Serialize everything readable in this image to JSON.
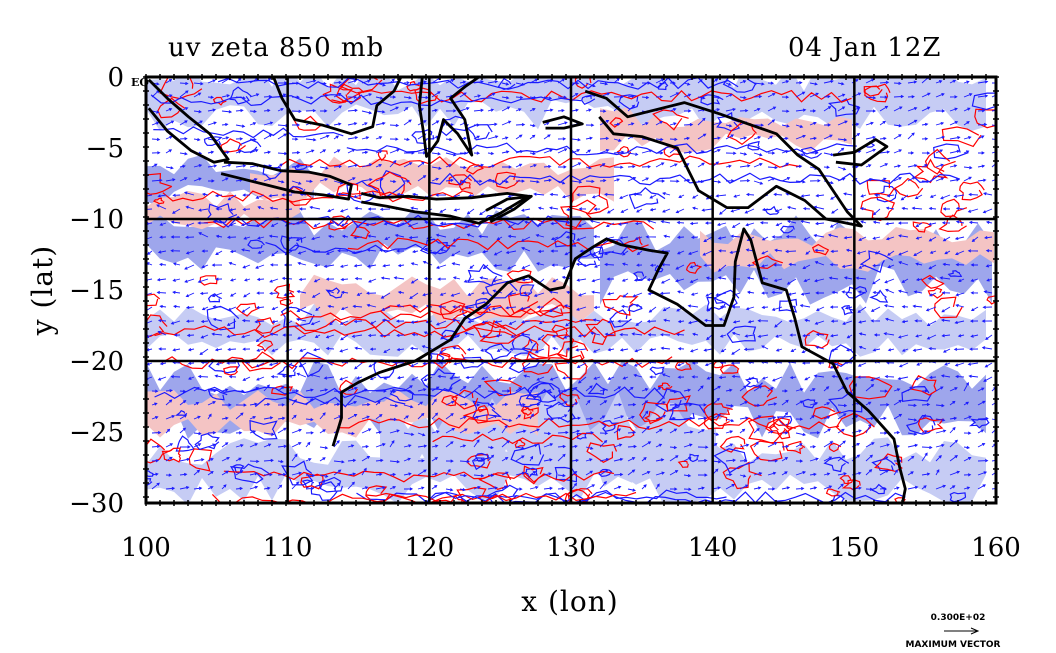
{
  "chart_data": {
    "type": "contour-vector map",
    "title_left": "uv zeta 850 mb",
    "title_right": "04 Jan 12Z",
    "xlabel": "x (lon)",
    "ylabel": "y (lat)",
    "xlim": [
      100,
      160
    ],
    "ylim": [
      -30,
      0
    ],
    "x_ticks": [
      100,
      110,
      120,
      130,
      140,
      150,
      160
    ],
    "y_ticks": [
      0,
      -5,
      -10,
      -15,
      -20,
      -25,
      -30
    ],
    "x_tick_labels": [
      "100",
      "110",
      "120",
      "130",
      "140",
      "150",
      "160"
    ],
    "y_tick_labels": [
      "0",
      "−5",
      "−10",
      "−15",
      "−20",
      "−25",
      "−30"
    ],
    "corner_label": "EQ",
    "grid": true,
    "grid_x": [
      110,
      120,
      130,
      140,
      150
    ],
    "grid_y": [
      -10,
      -20
    ],
    "legend": {
      "vector_value": "0.300E+02",
      "vector_label": "MAXIMUM VECTOR"
    },
    "colors": {
      "positive_contour": "#ff0000",
      "positive_fill": "#f4c4c4",
      "negative_contour": "#1a1aff",
      "negative_fill": "#9ea6ec",
      "negative_fill_light": "#c6ccf4",
      "coastline": "#000000",
      "vectors": "#1a1aff"
    },
    "coastlines": [
      {
        "name": "sumatra",
        "points": [
          [
            100.2,
            -0.2
          ],
          [
            101.5,
            -1.5
          ],
          [
            103,
            -2.8
          ],
          [
            104.5,
            -4
          ],
          [
            105.8,
            -5.8
          ],
          [
            104.8,
            -6
          ],
          [
            103.2,
            -5.2
          ],
          [
            101.5,
            -3.8
          ],
          [
            100.2,
            -2.2
          ]
        ]
      },
      {
        "name": "java",
        "points": [
          [
            105.5,
            -6
          ],
          [
            107.5,
            -6.1
          ],
          [
            109.5,
            -6.6
          ],
          [
            111.5,
            -6.7
          ],
          [
            113,
            -7
          ],
          [
            114.5,
            -7.6
          ],
          [
            114.3,
            -8.6
          ],
          [
            112.5,
            -8.3
          ],
          [
            110.5,
            -8.1
          ],
          [
            108.5,
            -7.6
          ],
          [
            106.5,
            -7.1
          ],
          [
            105.3,
            -6.8
          ]
        ]
      },
      {
        "name": "lesser-sundas",
        "points": [
          [
            115.2,
            -8.2
          ],
          [
            116.5,
            -8.5
          ],
          [
            118.5,
            -8.4
          ],
          [
            120.5,
            -8.6
          ],
          [
            123,
            -8.5
          ],
          [
            125.5,
            -8.2
          ],
          [
            127,
            -8.4
          ],
          [
            125,
            -9.6
          ],
          [
            123.5,
            -10.3
          ],
          [
            121.5,
            -9.8
          ],
          [
            119,
            -9.5
          ],
          [
            117,
            -9.1
          ],
          [
            115.2,
            -8.8
          ]
        ]
      },
      {
        "name": "borneo-south",
        "points": [
          [
            109,
            0
          ],
          [
            109.6,
            -1.5
          ],
          [
            110.5,
            -3
          ],
          [
            112.5,
            -3.4
          ],
          [
            114.5,
            -4
          ],
          [
            116,
            -3.5
          ],
          [
            116.3,
            -2
          ],
          [
            117.5,
            -1
          ],
          [
            118,
            0
          ]
        ]
      },
      {
        "name": "sulawesi",
        "points": [
          [
            119.5,
            0
          ],
          [
            119.3,
            -2
          ],
          [
            119.6,
            -4
          ],
          [
            119.8,
            -5.6
          ],
          [
            120.6,
            -4.5
          ],
          [
            121,
            -3
          ],
          [
            122,
            -4
          ],
          [
            123,
            -5.5
          ],
          [
            122.5,
            -3
          ],
          [
            121.5,
            -1.5
          ],
          [
            122.5,
            -0.7
          ],
          [
            123.5,
            0
          ]
        ]
      },
      {
        "name": "new-guinea",
        "points": [
          [
            131,
            -1
          ],
          [
            132.5,
            -1.5
          ],
          [
            134,
            -2.8
          ],
          [
            136,
            -2.3
          ],
          [
            138,
            -1.8
          ],
          [
            140.5,
            -2.6
          ],
          [
            142.5,
            -3.3
          ],
          [
            144.5,
            -4
          ],
          [
            146,
            -5.5
          ],
          [
            147.5,
            -6.5
          ],
          [
            148.5,
            -8
          ],
          [
            149.5,
            -9.5
          ],
          [
            150.5,
            -10.5
          ],
          [
            148,
            -10
          ],
          [
            146.5,
            -8.7
          ],
          [
            144.5,
            -7.7
          ],
          [
            142.5,
            -9.2
          ],
          [
            141,
            -9.2
          ],
          [
            139,
            -8
          ],
          [
            137.5,
            -5
          ],
          [
            135,
            -4.2
          ],
          [
            133,
            -4
          ],
          [
            132,
            -2.8
          ]
        ]
      },
      {
        "name": "new-britain",
        "points": [
          [
            148.5,
            -5.5
          ],
          [
            150,
            -5.3
          ],
          [
            151.5,
            -4.4
          ],
          [
            152.3,
            -4.9
          ],
          [
            150.5,
            -6.2
          ],
          [
            148.7,
            -6
          ]
        ]
      },
      {
        "name": "australia",
        "points": [
          [
            113.2,
            -26
          ],
          [
            113.8,
            -24
          ],
          [
            113.8,
            -22.2
          ],
          [
            115,
            -21.5
          ],
          [
            116.5,
            -20.8
          ],
          [
            119,
            -20
          ],
          [
            121.5,
            -18.5
          ],
          [
            122.5,
            -17
          ],
          [
            124,
            -16
          ],
          [
            125.5,
            -14.5
          ],
          [
            127,
            -14
          ],
          [
            128.5,
            -15
          ],
          [
            129.5,
            -14.8
          ],
          [
            130.3,
            -12.8
          ],
          [
            131.5,
            -12
          ],
          [
            132.5,
            -11.4
          ],
          [
            133.5,
            -11.8
          ],
          [
            135.5,
            -12.2
          ],
          [
            136.8,
            -12.4
          ],
          [
            136.2,
            -13.5
          ],
          [
            135.5,
            -15
          ],
          [
            137.5,
            -16
          ],
          [
            139.5,
            -17.5
          ],
          [
            140.8,
            -17.5
          ],
          [
            141.5,
            -15.5
          ],
          [
            141.6,
            -13
          ],
          [
            142.2,
            -10.7
          ],
          [
            142.7,
            -11.5
          ],
          [
            143.5,
            -14.5
          ],
          [
            145.2,
            -15
          ],
          [
            145.8,
            -17
          ],
          [
            146.3,
            -19
          ],
          [
            148.5,
            -20.2
          ],
          [
            149.5,
            -22.2
          ],
          [
            151,
            -23.5
          ],
          [
            152.8,
            -25.5
          ],
          [
            153.2,
            -27.5
          ],
          [
            153.6,
            -29
          ],
          [
            153.4,
            -30
          ]
        ]
      },
      {
        "name": "timor",
        "points": [
          [
            124,
            -9.4
          ],
          [
            125.5,
            -8.6
          ],
          [
            127.2,
            -8.4
          ],
          [
            126,
            -9.3
          ],
          [
            124.3,
            -10.2
          ]
        ]
      },
      {
        "name": "seram",
        "points": [
          [
            128,
            -3.2
          ],
          [
            129.5,
            -2.8
          ],
          [
            130.8,
            -3.3
          ],
          [
            129.5,
            -3.6
          ],
          [
            128.2,
            -3.6
          ]
        ]
      }
    ]
  }
}
